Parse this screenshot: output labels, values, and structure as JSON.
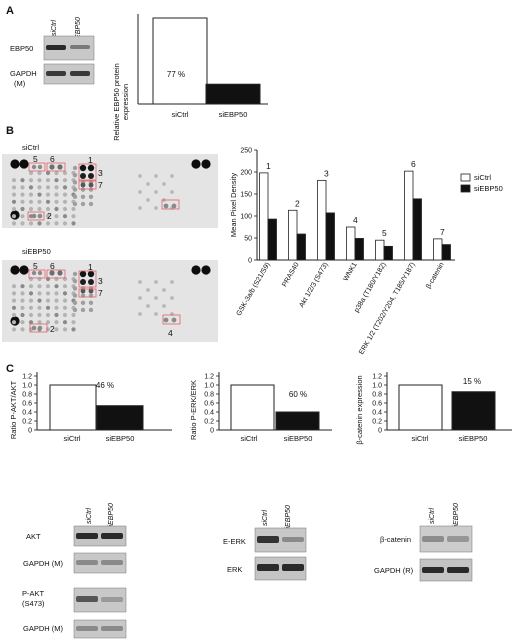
{
  "panels": {
    "a": "A",
    "b": "B",
    "c": "C"
  },
  "panel_a": {
    "blot": {
      "lanes": [
        "siCtrl",
        "siEBP50"
      ],
      "rows": [
        "EBP50",
        "GAPDH",
        "(M)"
      ]
    },
    "chart": {
      "ylabel_line1": "Relative EBP50 protein",
      "ylabel_line2": "expression",
      "pct_label": "77 %"
    }
  },
  "panel_b": {
    "array_labels": [
      "siCtrl",
      "siEBP50"
    ],
    "spot_numbers": [
      "1",
      "2",
      "3",
      "4",
      "5",
      "6",
      "7"
    ],
    "chart": {
      "ylabel": "Mean Pixel Density",
      "legend": [
        "siCtrl",
        "siEBP50"
      ]
    }
  },
  "panel_c": {
    "charts": [
      {
        "ylabel": "Ratio P-AKT/AKT",
        "pct": "46 %"
      },
      {
        "ylabel": "Ratio P-ERK/ERK",
        "pct": "60 %"
      },
      {
        "ylabel": "β-catenin expression",
        "pct": "15 %"
      }
    ],
    "blots": [
      {
        "lanes": [
          "siCtrl",
          "siEBP50"
        ],
        "rows": [
          "AKT",
          "GAPDH (M)",
          "P-AKT",
          "(S473)",
          "GAPDH (M)"
        ]
      },
      {
        "lanes": [
          "siCtrl",
          "siEBP50"
        ],
        "rows": [
          "E-ERK",
          "ERK"
        ]
      },
      {
        "lanes": [
          "siCtrl",
          "siEBP50"
        ],
        "rows": [
          "β-catenin",
          "GAPDH (R)"
        ]
      }
    ]
  },
  "chart_data": [
    {
      "type": "bar",
      "categories": [
        "siCtrl",
        "siEBP50"
      ],
      "values": [
        100,
        23
      ],
      "ylabel": "Relative EBP50 protein expression",
      "ylim": [
        0,
        100
      ],
      "colors": [
        "#ffffff",
        "#111111"
      ]
    },
    {
      "type": "bar",
      "categories": [
        "GSK-3a/b (S21/S9)",
        "PRAS40",
        "Akt 1/2/3 (S473)",
        "WNK1",
        "p38a (T180/Y182)",
        "ERK 1/2 (T202/Y204, T185/Y187)",
        "β-catenin"
      ],
      "tick_labels": [
        "0",
        "50",
        "100",
        "150",
        "200",
        "250"
      ],
      "ylabel": "Mean Pixel Density",
      "ylim": [
        0,
        250
      ],
      "series": [
        {
          "name": "siCtrl",
          "values": [
            198,
            113,
            181,
            75,
            45,
            202,
            48
          ],
          "color": "#ffffff"
        },
        {
          "name": "siEBP50",
          "values": [
            93,
            59,
            107,
            49,
            31,
            139,
            35
          ],
          "color": "#111111"
        }
      ],
      "bar_labels": [
        "1",
        "2",
        "3",
        "4",
        "5",
        "6",
        "7"
      ],
      "legend": "top-right"
    },
    {
      "type": "bar",
      "categories": [
        "siCtrl",
        "siEBP50"
      ],
      "values": [
        1.0,
        0.54
      ],
      "tick_labels": [
        "0",
        "0.2",
        "0.4",
        "0.6",
        "0.8",
        "1.0",
        "1.2"
      ],
      "ylabel": "Ratio P-AKT/AKT",
      "ylim": [
        0,
        1.2
      ]
    },
    {
      "type": "bar",
      "categories": [
        "siCtrl",
        "siEBP50"
      ],
      "values": [
        1.0,
        0.4
      ],
      "tick_labels": [
        "0",
        "0.2",
        "0.4",
        "0.6",
        "0.8",
        "1.0",
        "1.2"
      ],
      "ylabel": "Ratio P-ERK/ERK",
      "ylim": [
        0,
        1.2
      ]
    },
    {
      "type": "bar",
      "categories": [
        "siCtrl",
        "siEBP50"
      ],
      "values": [
        1.0,
        0.85
      ],
      "tick_labels": [
        "0",
        "0.2",
        "0.4",
        "0.6",
        "0.8",
        "1.0",
        "1.2"
      ],
      "ylabel": "β-catenin expression",
      "ylim": [
        0,
        1.2
      ]
    }
  ]
}
